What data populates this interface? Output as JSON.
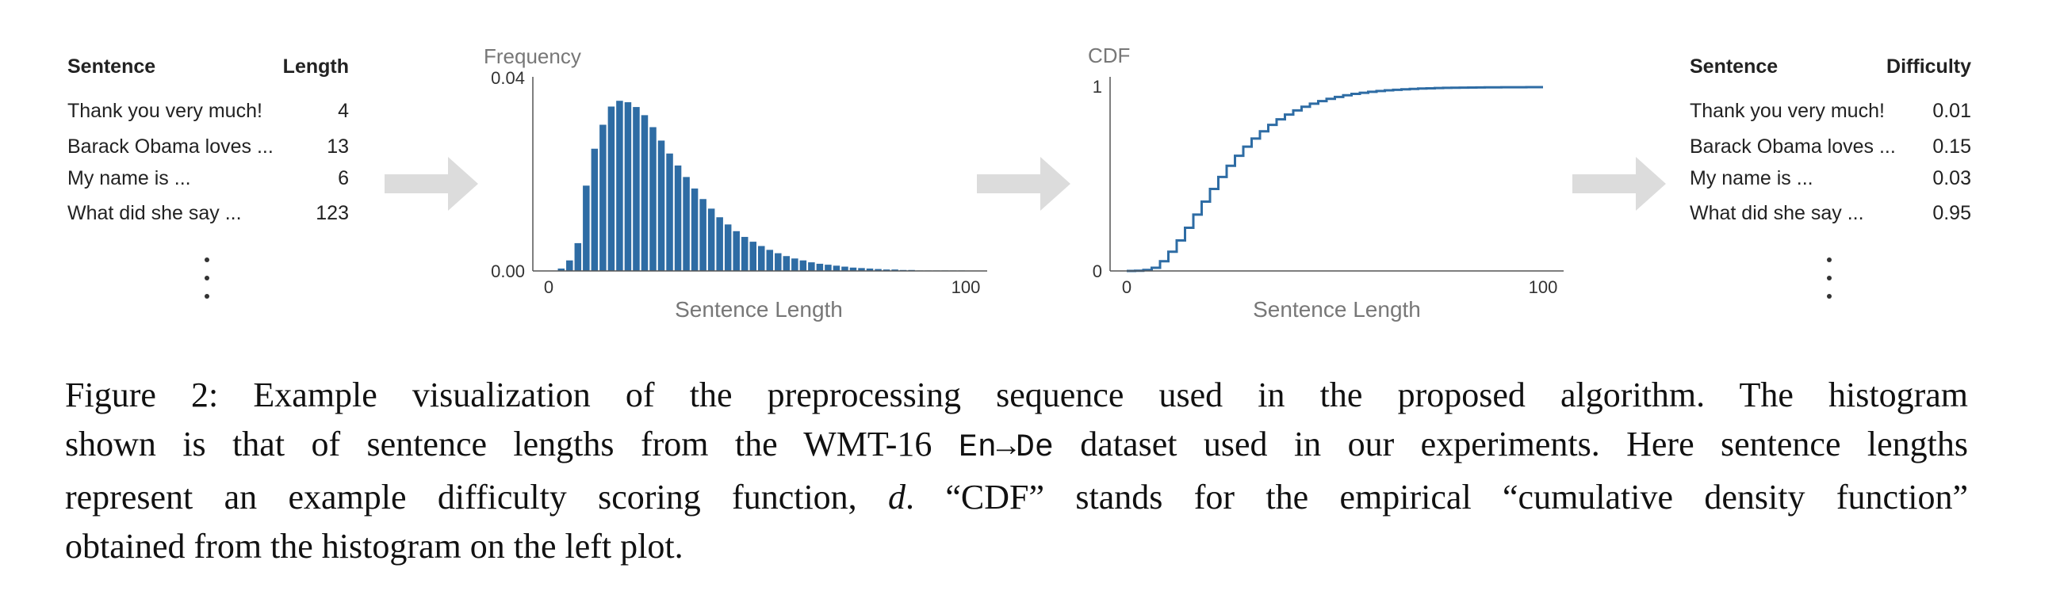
{
  "left_table": {
    "headers": [
      "Sentence",
      "Length"
    ],
    "rows": [
      {
        "sentence": "Thank you very much!",
        "value": "4"
      },
      {
        "sentence": "Barack Obama loves ...",
        "value": "13"
      },
      {
        "sentence": "My name is ...",
        "value": "6"
      },
      {
        "sentence": "What did she say ...",
        "value": "123"
      }
    ]
  },
  "right_table": {
    "headers": [
      "Sentence",
      "Difficulty"
    ],
    "rows": [
      {
        "sentence": "Thank you very much!",
        "value": "0.01"
      },
      {
        "sentence": "Barack Obama loves ...",
        "value": "0.15"
      },
      {
        "sentence": "My name is ...",
        "value": "0.03"
      },
      {
        "sentence": "What did she say ...",
        "value": "0.95"
      }
    ]
  },
  "chart_data": [
    {
      "type": "bar",
      "title": "",
      "ylabel": "Frequency",
      "xlabel": "Sentence Length",
      "xlim": [
        0,
        100
      ],
      "ylim": [
        0,
        0.04
      ],
      "x_ticks": [
        "0",
        "100"
      ],
      "y_ticks": [
        "0.00",
        "0.04"
      ],
      "color": "#2e6ca4",
      "bin_width": 2,
      "bin_starts": [
        2,
        4,
        6,
        8,
        10,
        12,
        14,
        16,
        18,
        20,
        22,
        24,
        26,
        28,
        30,
        32,
        34,
        36,
        38,
        40,
        42,
        44,
        46,
        48,
        50,
        52,
        54,
        56,
        58,
        60,
        62,
        64,
        66,
        68,
        70,
        72,
        74,
        76,
        78,
        80,
        82,
        84,
        86,
        88,
        90,
        92,
        94,
        96,
        98
      ],
      "values": [
        0.0005,
        0.0022,
        0.0058,
        0.0178,
        0.0255,
        0.0305,
        0.0343,
        0.0355,
        0.0352,
        0.0342,
        0.0325,
        0.03,
        0.0272,
        0.0245,
        0.022,
        0.0196,
        0.0172,
        0.015,
        0.013,
        0.0112,
        0.0097,
        0.0083,
        0.0071,
        0.0061,
        0.0052,
        0.0044,
        0.0037,
        0.0031,
        0.0026,
        0.0022,
        0.0018,
        0.0015,
        0.0013,
        0.0011,
        0.0009,
        0.0007,
        0.0006,
        0.0005,
        0.0004,
        0.0003,
        0.0003,
        0.0002,
        0.0002,
        0.0001,
        0.0001,
        0.0001,
        0.0001,
        0.0001,
        0.0001
      ]
    },
    {
      "type": "line",
      "title": "",
      "ylabel": "CDF",
      "xlabel": "Sentence Length",
      "xlim": [
        0,
        100
      ],
      "ylim": [
        0,
        1
      ],
      "x_ticks": [
        "0",
        "100"
      ],
      "y_ticks": [
        "0",
        "1"
      ],
      "color": "#2e6ca4",
      "step": true
    }
  ],
  "caption": {
    "label": "Figure 2:",
    "line1": "Example visualization of the preprocessing sequence used in the proposed algorithm.  The histogram",
    "line2_pre": "shown is that of sentence lengths from the WMT-16",
    "line2_code": "En→De",
    "line2_post": "dataset used in our experiments. Here sentence lengths",
    "line3_pre": "represent an example difficulty scoring function,",
    "line3_var": "d",
    "line3_post": ". “CDF” stands for the empirical “cumulative density function”",
    "line4": "obtained from the histogram on the left plot."
  }
}
